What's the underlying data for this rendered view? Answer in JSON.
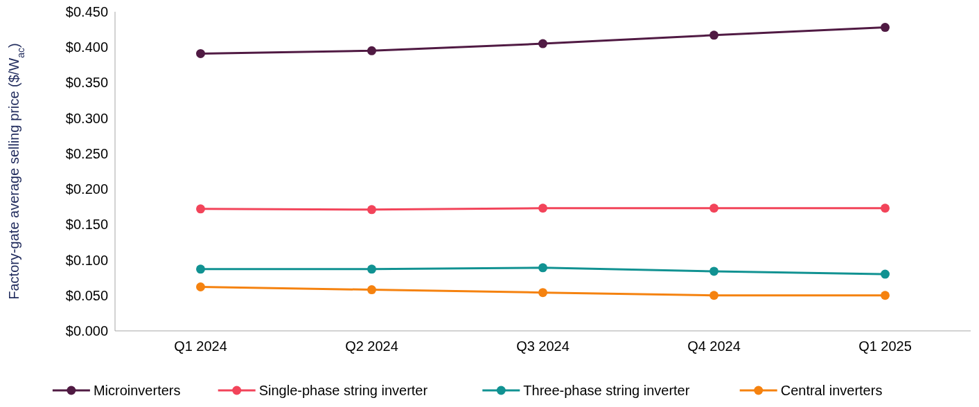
{
  "chart_data": {
    "type": "line",
    "ylabel": "Factory-gate average selling price ($/W$_{ac}$)",
    "categories": [
      "Q1 2024",
      "Q2 2024",
      "Q3 2024",
      "Q4 2024",
      "Q1 2025"
    ],
    "ylim": [
      0,
      0.45
    ],
    "yticks": [
      {
        "value": 0,
        "label": "$0.000"
      },
      {
        "value": 0.05,
        "label": "$0.050"
      },
      {
        "value": 0.1,
        "label": "$0.100"
      },
      {
        "value": 0.15,
        "label": "$0.150"
      },
      {
        "value": 0.2,
        "label": "$0.200"
      },
      {
        "value": 0.25,
        "label": "$0.250"
      },
      {
        "value": 0.3,
        "label": "$0.300"
      },
      {
        "value": 0.35,
        "label": "$0.350"
      },
      {
        "value": 0.4,
        "label": "$0.400"
      },
      {
        "value": 0.45,
        "label": "$0.450"
      }
    ],
    "grid": false,
    "legend": "bottom",
    "marker": "circle",
    "line_style": "solid",
    "series": [
      {
        "name": "Microinverters",
        "color": "#501a43",
        "values": [
          0.391,
          0.395,
          0.405,
          0.417,
          0.428
        ]
      },
      {
        "name": "Single-phase string inverter",
        "color": "#f2445a",
        "values": [
          0.172,
          0.171,
          0.173,
          0.173,
          0.173
        ]
      },
      {
        "name": "Three-phase string inverter",
        "color": "#119292",
        "values": [
          0.087,
          0.087,
          0.089,
          0.084,
          0.08
        ]
      },
      {
        "name": "Central inverters",
        "color": "#f5820f",
        "values": [
          0.062,
          0.058,
          0.054,
          0.05,
          0.05
        ]
      }
    ]
  }
}
